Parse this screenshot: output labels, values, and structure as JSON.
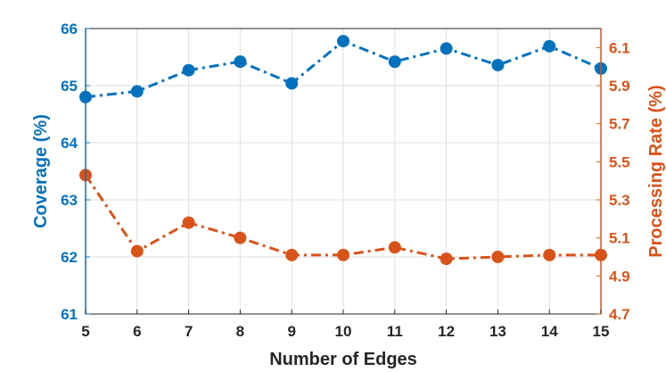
{
  "chart_data": {
    "type": "line",
    "xlabel": "Number of Edges",
    "ylabel_left": "Coverage (%)",
    "ylabel_right": "Processing Rate (%)",
    "x": [
      5,
      6,
      7,
      8,
      9,
      10,
      11,
      12,
      13,
      14,
      15
    ],
    "xlim": [
      5,
      15
    ],
    "x_ticks": [
      "5",
      "6",
      "7",
      "8",
      "9",
      "10",
      "11",
      "12",
      "13",
      "14",
      "15"
    ],
    "ylim_left": [
      61,
      66
    ],
    "y_ticks_left": [
      "61",
      "62",
      "63",
      "64",
      "65",
      "66"
    ],
    "ylim_right": [
      4.7,
      6.2
    ],
    "y_ticks_right": [
      "4.7",
      "4.9",
      "5.1",
      "5.3",
      "5.5",
      "5.7",
      "5.9",
      "6.1"
    ],
    "grid": true,
    "series": [
      {
        "axis": "left",
        "color": "#0072BD",
        "line_style": "dash-dot",
        "marker": "circle",
        "values": [
          64.8,
          64.9,
          65.27,
          65.42,
          65.04,
          65.78,
          65.42,
          65.65,
          65.36,
          65.69,
          65.3
        ]
      },
      {
        "axis": "right",
        "color": "#D95319",
        "line_style": "dash-dot",
        "marker": "circle",
        "values": [
          5.43,
          5.03,
          5.18,
          5.1,
          5.01,
          5.01,
          5.05,
          4.99,
          5.0,
          5.01,
          5.01
        ]
      }
    ]
  }
}
